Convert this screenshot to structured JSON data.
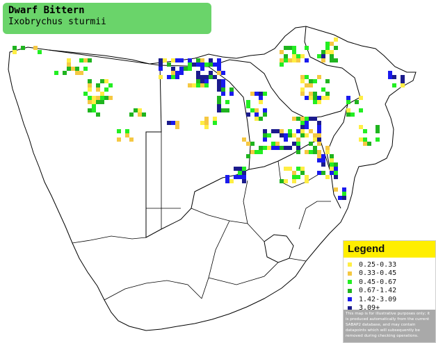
{
  "title": {
    "common_name": "Dwarf Bittern",
    "scientific_name": "Ixobrychus sturmii"
  },
  "legend": {
    "heading": "Legend",
    "items": [
      {
        "label": "0.25-0.33",
        "color": "#ffee44"
      },
      {
        "label": "0.33-0.45",
        "color": "#f5c842"
      },
      {
        "label": "0.45-0.67",
        "color": "#22ee22"
      },
      {
        "label": "0.67-1.42",
        "color": "#1fb41f"
      },
      {
        "label": "1.42-3.09",
        "color": "#1a1aee"
      },
      {
        "label": "3.09+",
        "color": "#1b1b8c"
      }
    ],
    "disclaimer": "This map is for illustrative purposes only; it is produced automatically from the current SABAP2 database, and may contain datapoints which will subsequently be removed during checking operations."
  },
  "colors": {
    "title_background": "#6ad46a",
    "legend_heading_background": "#ffee00",
    "disclaimer_background": "#a9a9a9",
    "border_lines": "#000000"
  }
}
